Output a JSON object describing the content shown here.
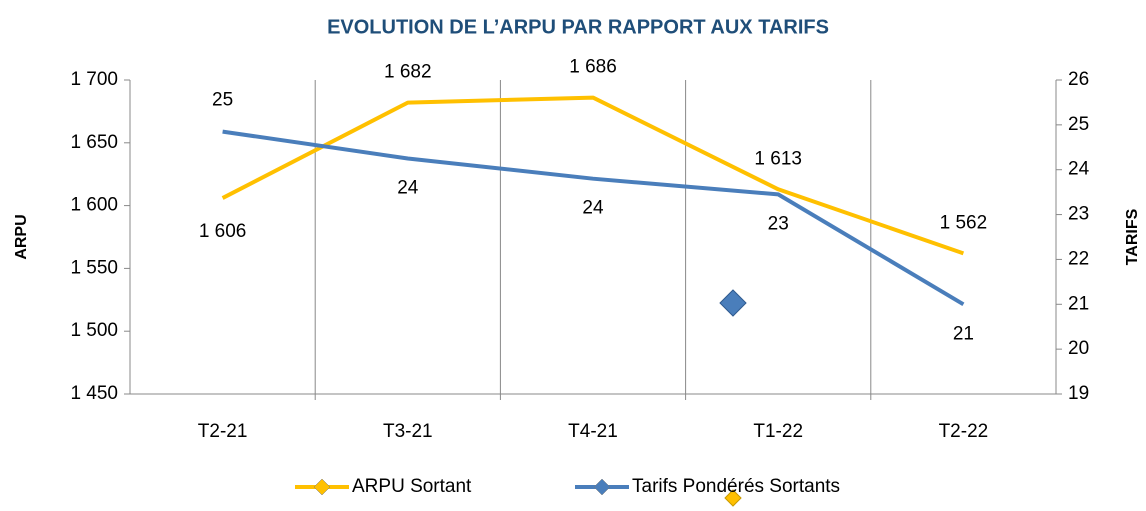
{
  "chart_data": {
    "type": "line",
    "title": "EVOLUTION DE L’ARPU PAR RAPPORT AUX TARIFS",
    "ylabel": "ARPU",
    "y2label": "TARIFS",
    "categories": [
      "T2-21",
      "T3-21",
      "T4-21",
      "T1-22",
      "T2-22"
    ],
    "series": [
      {
        "name": "ARPU Sortant",
        "color": "#ffc000",
        "values": [
          1606,
          1682,
          1686,
          1613,
          1562
        ],
        "value_labels": [
          "1 606",
          "1 682",
          "1 686",
          "1 613",
          "1 562"
        ]
      },
      {
        "name": "Tarifs Pondérés Sortants",
        "color": "#4a7ebb",
        "axis": "y2",
        "values": [
          24.85,
          24.25,
          23.8,
          23.45,
          21.0
        ],
        "value_labels": [
          "25",
          "24",
          "24",
          "23",
          "21"
        ]
      }
    ],
    "ylim": [
      1450,
      1700
    ],
    "yticks": [
      {
        "value": 1450,
        "label": "1 450"
      },
      {
        "value": 1500,
        "label": "1 500"
      },
      {
        "value": 1550,
        "label": "1 550"
      },
      {
        "value": 1600,
        "label": "1 600"
      },
      {
        "value": 1650,
        "label": "1 650"
      },
      {
        "value": 1700,
        "label": "1 700"
      }
    ],
    "y2lim": [
      19,
      26
    ],
    "y2ticks": [
      19,
      20,
      21,
      22,
      23,
      24,
      25,
      26
    ],
    "grid": true,
    "legend": "bottom"
  }
}
